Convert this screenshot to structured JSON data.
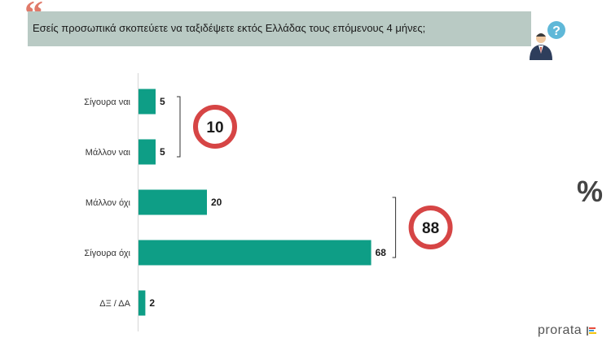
{
  "header": {
    "quote_mark": "“",
    "question": "Εσείς προσωπικά  σκοπεύετε να ταξιδέψετε εκτός Ελλάδας τους επόμενους 4 μήνες;",
    "person_icon": "person-question-icon"
  },
  "chart_data": {
    "type": "bar",
    "orientation": "horizontal",
    "categories": [
      "Σίγουρα ναι",
      "Μάλλον ναι",
      "Μάλλον όχι",
      "Σίγουρα όχι",
      "ΔΞ / ΔΑ"
    ],
    "values": [
      5,
      5,
      20,
      68,
      2
    ],
    "bar_color": "#0e9e86",
    "title": "",
    "xlabel": "",
    "ylabel": "",
    "xlim": [
      0,
      100
    ],
    "grid": false,
    "legend": "none",
    "groups": [
      {
        "members": [
          0,
          1
        ],
        "total": "10"
      },
      {
        "members": [
          2,
          3
        ],
        "total": "88"
      }
    ],
    "group_circle_color": "#d64545"
  },
  "side": {
    "percent_symbol": "%"
  },
  "footer": {
    "logo_text": "prorata"
  }
}
